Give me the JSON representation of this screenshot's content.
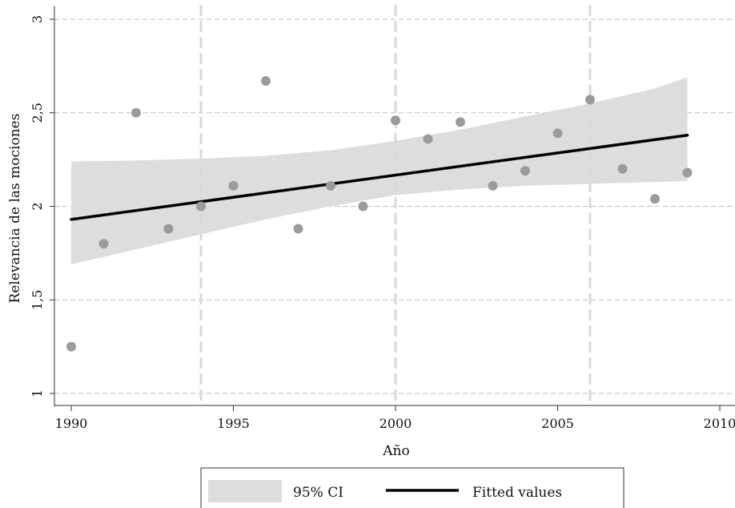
{
  "chart_data": {
    "type": "scatter",
    "xlabel": "Año",
    "ylabel": "Relevancia de las mociones",
    "xlim": [
      1990,
      2010
    ],
    "ylim": [
      0.93,
      3.07
    ],
    "x_ticks": [
      1990,
      1995,
      2000,
      2005,
      2010
    ],
    "x_tick_labels": [
      "1990",
      "1995",
      "2000",
      "2005",
      "2010"
    ],
    "y_ticks": [
      1,
      1.5,
      2,
      2.5,
      3
    ],
    "y_tick_labels": [
      "1",
      "1,5",
      "2",
      "2,5",
      "3"
    ],
    "horizontal_grid": true,
    "reference_lines_x": [
      1994,
      2000,
      2006
    ],
    "points": {
      "x": [
        1990,
        1991,
        1992,
        1993,
        1994,
        1995,
        1996,
        1997,
        1998,
        1999,
        2000,
        2001,
        2002,
        2003,
        2004,
        2005,
        2006,
        2007,
        2008,
        2009
      ],
      "y": [
        1.25,
        1.8,
        2.5,
        1.88,
        2.0,
        2.11,
        2.67,
        1.88,
        2.11,
        2.0,
        2.46,
        2.36,
        2.45,
        2.11,
        2.19,
        2.39,
        2.57,
        2.2,
        2.04,
        2.18
      ]
    },
    "fitted": {
      "x": [
        1990,
        2009
      ],
      "y": [
        1.93,
        2.38
      ]
    },
    "ci_band": {
      "x": [
        1990,
        1992,
        1994,
        1996,
        1998,
        2000,
        2002,
        2004,
        2006,
        2008,
        2009
      ],
      "lower": [
        1.69,
        1.77,
        1.85,
        1.93,
        2.0,
        2.06,
        2.09,
        2.11,
        2.12,
        2.13,
        2.135
      ],
      "upper": [
        2.24,
        2.245,
        2.255,
        2.27,
        2.3,
        2.35,
        2.41,
        2.48,
        2.55,
        2.63,
        2.69
      ]
    },
    "legend": {
      "position": "bottom",
      "items": [
        {
          "label": "95% CI",
          "kind": "area",
          "color": "#dcdddd"
        },
        {
          "label": "Fitted values",
          "kind": "line",
          "color": "#000000"
        }
      ]
    },
    "colors": {
      "points": "#9b9b9b",
      "ci": "#dcdddd",
      "fit": "#000000",
      "grid": "#bdbdbd",
      "reference_lines": "#d9d9d9"
    }
  }
}
